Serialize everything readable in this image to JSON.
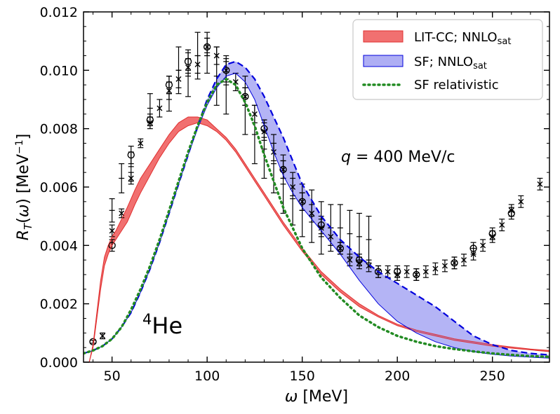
{
  "chart_data": {
    "type": "line",
    "xlabel": "ω  [MeV]",
    "ylabel": "R_T(ω) [MeV^-1]",
    "xlim": [
      35,
      280
    ],
    "ylim": [
      0,
      0.012
    ],
    "xticks": [
      "50",
      "100",
      "150",
      "200",
      "250"
    ],
    "yticks": [
      "0.000",
      "0.002",
      "0.004",
      "0.006",
      "0.008",
      "0.010",
      "0.012"
    ],
    "xtick_values": [
      50,
      100,
      150,
      200,
      250
    ],
    "ytick_values": [
      0,
      0.002,
      0.004,
      0.006,
      0.008,
      0.01,
      0.012
    ],
    "annotations": {
      "nucleus_sup": "4",
      "nucleus": "He",
      "q_symbol": "q",
      "q_value": " = 400 MeV/c"
    },
    "legend": {
      "position": "top-right",
      "entries": [
        {
          "name": "LIT-CC; NNLO",
          "sub": "sat",
          "style": "band",
          "color": "#f05050"
        },
        {
          "name": "SF; NNLO",
          "sub": "sat",
          "style": "band",
          "color": "#8080ee"
        },
        {
          "name": "SF relativistic",
          "sub": "",
          "style": "dotted",
          "color": "#228b22"
        }
      ]
    },
    "series": [
      {
        "name": "LIT-CC; NNLOsat",
        "kind": "band",
        "fill": "#f06060",
        "edge": "#e03030",
        "x": [
          38,
          40,
          42,
          44,
          46,
          48,
          50,
          52,
          55,
          58,
          60,
          62,
          65,
          70,
          75,
          80,
          85,
          90,
          95,
          100,
          105,
          110,
          115,
          120,
          125,
          130,
          140,
          150,
          160,
          170,
          180,
          190,
          200,
          210,
          220,
          230,
          240,
          250,
          260,
          270,
          280
        ],
        "lower": [
          0.0,
          0.0005,
          0.0015,
          0.0025,
          0.0033,
          0.0037,
          0.004,
          0.0042,
          0.0045,
          0.0048,
          0.0051,
          0.0054,
          0.0058,
          0.0064,
          0.007,
          0.0075,
          0.0079,
          0.0081,
          0.0082,
          0.0081,
          0.0079,
          0.0076,
          0.0072,
          0.0067,
          0.0062,
          0.0057,
          0.0047,
          0.0038,
          0.003,
          0.0024,
          0.0019,
          0.00155,
          0.00125,
          0.00105,
          0.0009,
          0.00075,
          0.00065,
          0.00055,
          0.00048,
          0.00042,
          0.00036
        ],
        "upper": [
          0.0,
          0.0006,
          0.0017,
          0.0028,
          0.0036,
          0.004,
          0.0043,
          0.0045,
          0.0049,
          0.0053,
          0.0056,
          0.0059,
          0.0063,
          0.0068,
          0.0073,
          0.0078,
          0.0082,
          0.0084,
          0.0084,
          0.0083,
          0.008,
          0.0077,
          0.0073,
          0.0068,
          0.0063,
          0.0058,
          0.0048,
          0.0039,
          0.0031,
          0.0025,
          0.002,
          0.0016,
          0.0013,
          0.0011,
          0.00095,
          0.0008,
          0.0007,
          0.0006,
          0.00052,
          0.00045,
          0.0004
        ]
      },
      {
        "name": "SF; NNLOsat",
        "kind": "band",
        "fill": "#8c8cf0",
        "edge": "#0000dd",
        "x": [
          35,
          40,
          45,
          50,
          55,
          60,
          65,
          70,
          75,
          80,
          85,
          90,
          95,
          100,
          105,
          110,
          115,
          120,
          125,
          130,
          135,
          140,
          145,
          150,
          160,
          170,
          180,
          190,
          200,
          210,
          220,
          230,
          240,
          250,
          260,
          270,
          280
        ],
        "lower": [
          0.0003,
          0.0004,
          0.00055,
          0.0008,
          0.0012,
          0.0017,
          0.0024,
          0.0032,
          0.0041,
          0.0051,
          0.0061,
          0.0071,
          0.008,
          0.0088,
          0.0094,
          0.0098,
          0.0099,
          0.0096,
          0.009,
          0.0081,
          0.0072,
          0.0064,
          0.0058,
          0.0053,
          0.0045,
          0.0037,
          0.0028,
          0.002,
          0.0014,
          0.001,
          0.0007,
          0.0005,
          0.00036,
          0.00027,
          0.00021,
          0.00017,
          0.00014
        ],
        "upper": [
          0.0003,
          0.0004,
          0.00055,
          0.0008,
          0.0012,
          0.0017,
          0.0024,
          0.0032,
          0.0041,
          0.0051,
          0.0061,
          0.0071,
          0.0081,
          0.009,
          0.0097,
          0.0102,
          0.0103,
          0.0101,
          0.0097,
          0.0091,
          0.0084,
          0.0077,
          0.0069,
          0.0061,
          0.005,
          0.0042,
          0.0036,
          0.0031,
          0.0027,
          0.0023,
          0.0019,
          0.0014,
          0.0009,
          0.0006,
          0.0004,
          0.0003,
          0.00025
        ]
      },
      {
        "name": "SF relativistic",
        "kind": "dotted",
        "color": "#228b22",
        "x": [
          35,
          40,
          45,
          50,
          55,
          60,
          65,
          70,
          75,
          80,
          85,
          90,
          95,
          100,
          105,
          110,
          115,
          120,
          125,
          130,
          140,
          150,
          160,
          170,
          180,
          190,
          200,
          210,
          220,
          230,
          240,
          250,
          260,
          270,
          280
        ],
        "y": [
          0.0003,
          0.0004,
          0.00055,
          0.0008,
          0.0012,
          0.0018,
          0.0025,
          0.0033,
          0.0042,
          0.0052,
          0.0062,
          0.0072,
          0.0081,
          0.0089,
          0.0095,
          0.0097,
          0.0095,
          0.0089,
          0.0081,
          0.0071,
          0.0053,
          0.0039,
          0.0029,
          0.0022,
          0.0016,
          0.0012,
          0.0009,
          0.0007,
          0.00055,
          0.00045,
          0.00037,
          0.0003,
          0.00025,
          0.00021,
          0.00018
        ]
      }
    ],
    "data_points": [
      {
        "x": 40,
        "y": 0.0007,
        "err": 5e-05,
        "m": "o"
      },
      {
        "x": 45,
        "y": 0.0009,
        "err": 0.0001,
        "m": "x"
      },
      {
        "x": 50,
        "y": 0.004,
        "err": 0.0002,
        "m": "o"
      },
      {
        "x": 50,
        "y": 0.0045,
        "err": 0.0002,
        "m": "x"
      },
      {
        "x": 50,
        "y": 0.0052,
        "err": 0.0004,
        "m": "+"
      },
      {
        "x": 55,
        "y": 0.0051,
        "err": 0.00015,
        "m": "x"
      },
      {
        "x": 55,
        "y": 0.0063,
        "err": 0.0005,
        "m": "+"
      },
      {
        "x": 60,
        "y": 0.0071,
        "err": 0.0003,
        "m": "o"
      },
      {
        "x": 60,
        "y": 0.0063,
        "err": 0.0002,
        "m": "x"
      },
      {
        "x": 60,
        "y": 0.0067,
        "err": 0.0005,
        "m": "+"
      },
      {
        "x": 65,
        "y": 0.0075,
        "err": 0.00015,
        "m": "x"
      },
      {
        "x": 70,
        "y": 0.0083,
        "err": 0.0002,
        "m": "o"
      },
      {
        "x": 70,
        "y": 0.0082,
        "err": 0.0002,
        "m": "x"
      },
      {
        "x": 70,
        "y": 0.0087,
        "err": 0.0005,
        "m": "+"
      },
      {
        "x": 75,
        "y": 0.0087,
        "err": 0.0003,
        "m": "x"
      },
      {
        "x": 80,
        "y": 0.0095,
        "err": 0.0003,
        "m": "o"
      },
      {
        "x": 80,
        "y": 0.0093,
        "err": 0.0003,
        "m": "x"
      },
      {
        "x": 80,
        "y": 0.0092,
        "err": 0.0006,
        "m": "+"
      },
      {
        "x": 85,
        "y": 0.0097,
        "err": 0.0003,
        "m": "x"
      },
      {
        "x": 85,
        "y": 0.01,
        "err": 0.0008,
        "m": "+"
      },
      {
        "x": 90,
        "y": 0.0103,
        "err": 0.0003,
        "m": "o"
      },
      {
        "x": 90,
        "y": 0.0101,
        "err": 0.0003,
        "m": "x"
      },
      {
        "x": 90,
        "y": 0.0099,
        "err": 0.0008,
        "m": "+"
      },
      {
        "x": 95,
        "y": 0.0102,
        "err": 0.0003,
        "m": "x"
      },
      {
        "x": 95,
        "y": 0.0105,
        "err": 0.0008,
        "m": "+"
      },
      {
        "x": 100,
        "y": 0.0108,
        "err": 0.0003,
        "m": "o"
      },
      {
        "x": 100,
        "y": 0.0108,
        "err": 0.0003,
        "m": "x"
      },
      {
        "x": 100,
        "y": 0.0106,
        "err": 0.0007,
        "m": "+"
      },
      {
        "x": 105,
        "y": 0.0105,
        "err": 0.0003,
        "m": "x"
      },
      {
        "x": 105,
        "y": 0.0098,
        "err": 0.001,
        "m": "+"
      },
      {
        "x": 110,
        "y": 0.01,
        "err": 0.0003,
        "m": "o"
      },
      {
        "x": 110,
        "y": 0.01,
        "err": 0.0004,
        "m": "x"
      },
      {
        "x": 110,
        "y": 0.0095,
        "err": 0.001,
        "m": "+"
      },
      {
        "x": 115,
        "y": 0.0096,
        "err": 0.0003,
        "m": "x"
      },
      {
        "x": 120,
        "y": 0.0091,
        "err": 0.0003,
        "m": "o"
      },
      {
        "x": 120,
        "y": 0.0091,
        "err": 0.0003,
        "m": "x"
      },
      {
        "x": 120,
        "y": 0.0088,
        "err": 0.001,
        "m": "+"
      },
      {
        "x": 125,
        "y": 0.0085,
        "err": 0.0003,
        "m": "x"
      },
      {
        "x": 125,
        "y": 0.0078,
        "err": 0.001,
        "m": "+"
      },
      {
        "x": 130,
        "y": 0.008,
        "err": 0.0003,
        "m": "o"
      },
      {
        "x": 130,
        "y": 0.0079,
        "err": 0.0003,
        "m": "x"
      },
      {
        "x": 130,
        "y": 0.0073,
        "err": 0.001,
        "m": "+"
      },
      {
        "x": 135,
        "y": 0.0072,
        "err": 0.0003,
        "m": "x"
      },
      {
        "x": 135,
        "y": 0.0068,
        "err": 0.001,
        "m": "+"
      },
      {
        "x": 140,
        "y": 0.0066,
        "err": 0.0003,
        "m": "o"
      },
      {
        "x": 140,
        "y": 0.0066,
        "err": 0.0003,
        "m": "x"
      },
      {
        "x": 140,
        "y": 0.0061,
        "err": 0.001,
        "m": "+"
      },
      {
        "x": 145,
        "y": 0.006,
        "err": 0.0003,
        "m": "x"
      },
      {
        "x": 145,
        "y": 0.0056,
        "err": 0.0009,
        "m": "+"
      },
      {
        "x": 150,
        "y": 0.0055,
        "err": 0.0003,
        "m": "o"
      },
      {
        "x": 150,
        "y": 0.0055,
        "err": 0.0003,
        "m": "x"
      },
      {
        "x": 150,
        "y": 0.0052,
        "err": 0.0009,
        "m": "+"
      },
      {
        "x": 155,
        "y": 0.0051,
        "err": 0.0003,
        "m": "x"
      },
      {
        "x": 155,
        "y": 0.005,
        "err": 0.0009,
        "m": "+"
      },
      {
        "x": 160,
        "y": 0.0047,
        "err": 0.0003,
        "m": "o"
      },
      {
        "x": 160,
        "y": 0.0046,
        "err": 0.0003,
        "m": "x"
      },
      {
        "x": 160,
        "y": 0.0046,
        "err": 0.0009,
        "m": "+"
      },
      {
        "x": 165,
        "y": 0.0043,
        "err": 0.0003,
        "m": "x"
      },
      {
        "x": 165,
        "y": 0.0046,
        "err": 0.0008,
        "m": "+"
      },
      {
        "x": 170,
        "y": 0.0039,
        "err": 0.0002,
        "m": "o"
      },
      {
        "x": 170,
        "y": 0.0039,
        "err": 0.0002,
        "m": "x"
      },
      {
        "x": 170,
        "y": 0.0046,
        "err": 0.0008,
        "m": "+"
      },
      {
        "x": 175,
        "y": 0.0035,
        "err": 0.0002,
        "m": "x"
      },
      {
        "x": 175,
        "y": 0.0044,
        "err": 0.0008,
        "m": "+"
      },
      {
        "x": 180,
        "y": 0.0035,
        "err": 0.0002,
        "m": "o"
      },
      {
        "x": 180,
        "y": 0.0034,
        "err": 0.0002,
        "m": "x"
      },
      {
        "x": 180,
        "y": 0.0043,
        "err": 0.0008,
        "m": "+"
      },
      {
        "x": 185,
        "y": 0.0033,
        "err": 0.0002,
        "m": "x"
      },
      {
        "x": 185,
        "y": 0.0042,
        "err": 0.0008,
        "m": "+"
      },
      {
        "x": 190,
        "y": 0.0031,
        "err": 0.0002,
        "m": "o"
      },
      {
        "x": 190,
        "y": 0.0031,
        "err": 0.0002,
        "m": "x"
      },
      {
        "x": 195,
        "y": 0.0031,
        "err": 0.0002,
        "m": "x"
      },
      {
        "x": 200,
        "y": 0.0031,
        "err": 0.0002,
        "m": "o"
      },
      {
        "x": 200,
        "y": 0.003,
        "err": 0.0002,
        "m": "x"
      },
      {
        "x": 205,
        "y": 0.0031,
        "err": 0.0002,
        "m": "x"
      },
      {
        "x": 210,
        "y": 0.003,
        "err": 0.0002,
        "m": "o"
      },
      {
        "x": 210,
        "y": 0.003,
        "err": 0.0002,
        "m": "x"
      },
      {
        "x": 215,
        "y": 0.0031,
        "err": 0.0002,
        "m": "x"
      },
      {
        "x": 220,
        "y": 0.0032,
        "err": 0.0002,
        "m": "x"
      },
      {
        "x": 225,
        "y": 0.0033,
        "err": 0.0002,
        "m": "x"
      },
      {
        "x": 230,
        "y": 0.0034,
        "err": 0.0002,
        "m": "o"
      },
      {
        "x": 230,
        "y": 0.0034,
        "err": 0.0002,
        "m": "x"
      },
      {
        "x": 235,
        "y": 0.0035,
        "err": 0.0002,
        "m": "x"
      },
      {
        "x": 240,
        "y": 0.0039,
        "err": 0.0002,
        "m": "o"
      },
      {
        "x": 240,
        "y": 0.0037,
        "err": 0.0002,
        "m": "x"
      },
      {
        "x": 245,
        "y": 0.004,
        "err": 0.0002,
        "m": "x"
      },
      {
        "x": 250,
        "y": 0.0044,
        "err": 0.0002,
        "m": "o"
      },
      {
        "x": 250,
        "y": 0.0043,
        "err": 0.0002,
        "m": "x"
      },
      {
        "x": 255,
        "y": 0.0047,
        "err": 0.0002,
        "m": "x"
      },
      {
        "x": 260,
        "y": 0.0051,
        "err": 0.0002,
        "m": "o"
      },
      {
        "x": 260,
        "y": 0.0052,
        "err": 0.0002,
        "m": "x"
      },
      {
        "x": 265,
        "y": 0.0055,
        "err": 0.0002,
        "m": "x"
      },
      {
        "x": 275,
        "y": 0.0061,
        "err": 0.0002,
        "m": "x"
      }
    ]
  }
}
